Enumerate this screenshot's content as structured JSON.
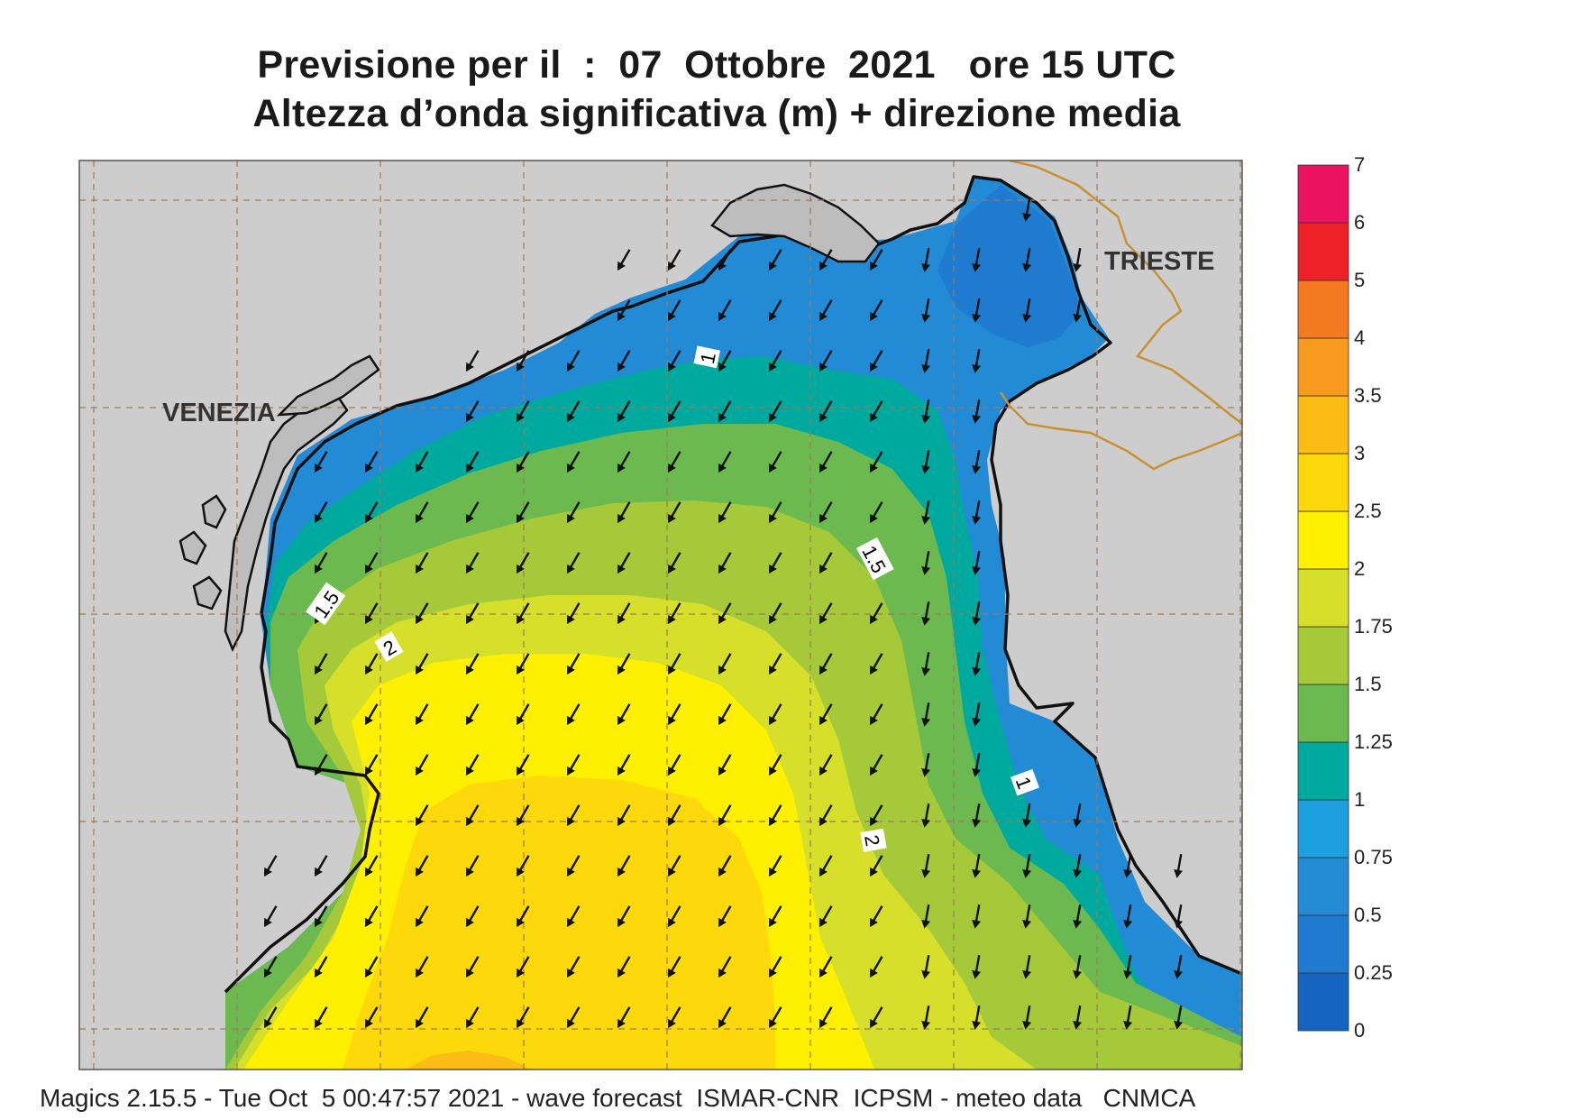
{
  "header": {
    "title": "Previsione per il  :  07  Ottobre  2021   ore 15 UTC",
    "subtitle": "Altezza d’onda significativa (m) + direzione media"
  },
  "map": {
    "cities": [
      {
        "name": "VENEZIA"
      },
      {
        "name": "TRIESTE"
      }
    ],
    "contour_labels": [
      "1",
      "1.5",
      "1.5",
      "2",
      "1",
      "2"
    ],
    "arrow_direction": "south-west"
  },
  "legend": {
    "levels": [
      "0",
      "0.25",
      "0.5",
      "0.75",
      "1",
      "1.25",
      "1.5",
      "1.75",
      "2",
      "2.5",
      "3",
      "3.5",
      "4",
      "5",
      "6",
      "7"
    ],
    "colors": [
      "#1565c0",
      "#1e7bcf",
      "#238ad6",
      "#1ea0e0",
      "#00a99d",
      "#6cba4f",
      "#a6c93a",
      "#d6df2a",
      "#fff000",
      "#fdd80a",
      "#fcbc16",
      "#f99a20",
      "#f47a22",
      "#ec2227",
      "#eb1260"
    ]
  },
  "footer": {
    "text": "Magics 2.15.5 - Tue Oct  5 00:47:57 2021 - wave forecast  ISMAR-CNR  ICPSM - meteo data   CNMCA"
  }
}
